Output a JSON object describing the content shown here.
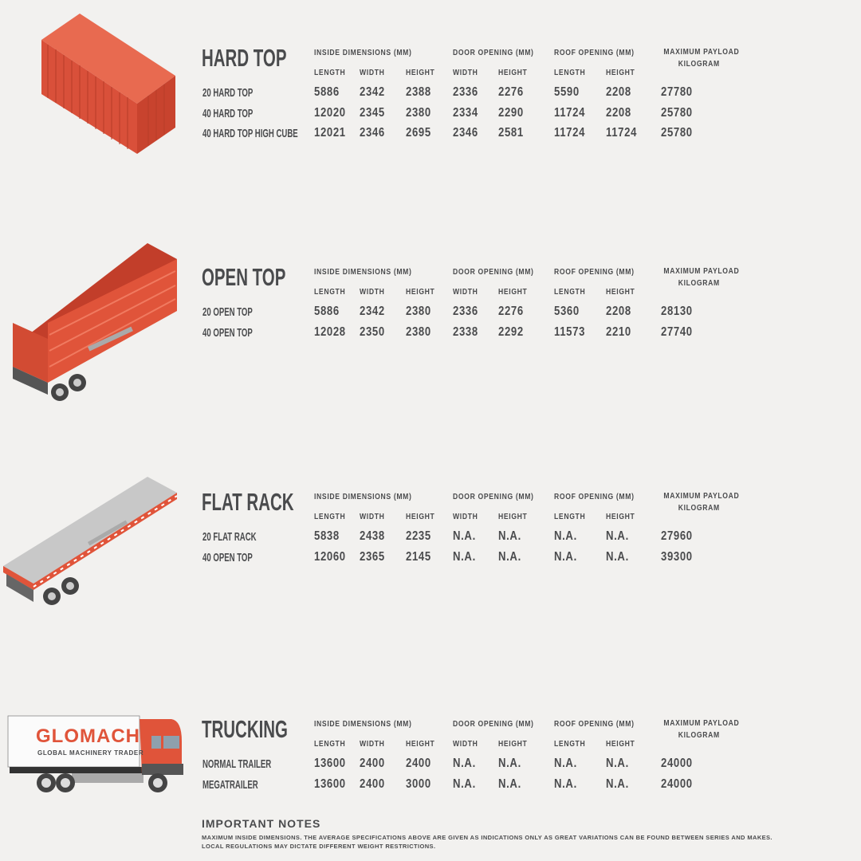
{
  "columns": {
    "groups": [
      "INSIDE DIMENSIONS (MM)",
      "DOOR OPENING (MM)",
      "ROOF OPENING (MM)"
    ],
    "payload": [
      "MAXIMUM PAYLOAD",
      "KILOGRAM"
    ],
    "sub": [
      "LENGTH",
      "WIDTH",
      "HEIGHT",
      "WIDTH",
      "HEIGHT",
      "LENGTH",
      "HEIGHT"
    ]
  },
  "sections": [
    {
      "title": "HARD TOP",
      "illustration": "container-hard-top",
      "rows": [
        {
          "name": "20 HARD TOP",
          "values": [
            "5886",
            "2342",
            "2388",
            "2336",
            "2276",
            "5590",
            "2208",
            "27780"
          ]
        },
        {
          "name": "40 HARD TOP",
          "values": [
            "12020",
            "2345",
            "2380",
            "2334",
            "2290",
            "11724",
            "2208",
            "25780"
          ]
        },
        {
          "name": "40 HARD TOP HIGH CUBE",
          "values": [
            "12021",
            "2346",
            "2695",
            "2346",
            "2581",
            "11724",
            "11724",
            "25780"
          ]
        }
      ]
    },
    {
      "title": "OPEN TOP",
      "illustration": "open-top-trailer",
      "rows": [
        {
          "name": "20 OPEN TOP",
          "values": [
            "5886",
            "2342",
            "2380",
            "2336",
            "2276",
            "5360",
            "2208",
            "28130"
          ]
        },
        {
          "name": "40 OPEN TOP",
          "values": [
            "12028",
            "2350",
            "2380",
            "2338",
            "2292",
            "11573",
            "2210",
            "27740"
          ]
        }
      ]
    },
    {
      "title": "FLAT RACK",
      "illustration": "flat-rack-trailer",
      "rows": [
        {
          "name": "20 FLAT RACK",
          "values": [
            "5838",
            "2438",
            "2235",
            "N.A.",
            "N.A.",
            "N.A.",
            "N.A.",
            "27960"
          ]
        },
        {
          "name": "40 OPEN TOP",
          "values": [
            "12060",
            "2365",
            "2145",
            "N.A.",
            "N.A.",
            "N.A.",
            "N.A.",
            "39300"
          ]
        }
      ]
    },
    {
      "title": "TRUCKING",
      "illustration": "truck",
      "rows": [
        {
          "name": "NORMAL TRAILER",
          "values": [
            "13600",
            "2400",
            "2400",
            "N.A.",
            "N.A.",
            "N.A.",
            "N.A.",
            "24000"
          ]
        },
        {
          "name": "MEGATRAILER",
          "values": [
            "13600",
            "2400",
            "3000",
            "N.A.",
            "N.A.",
            "N.A.",
            "N.A.",
            "24000"
          ]
        }
      ]
    }
  ],
  "truck_logo": {
    "brand": "GLOMACHT",
    "tagline": "GLOBAL MACHINERY TRADER"
  },
  "notes": {
    "title": "IMPORTANT NOTES",
    "lines": [
      "MAXIMUM INSIDE DIMENSIONS. THE AVERAGE SPECIFICATIONS ABOVE ARE GIVEN AS INDICATIONS ONLY AS GREAT VARIATIONS CAN BE FOUND BETWEEN SERIES AND MAKES.",
      "LOCAL REGULATIONS MAY DICTATE DIFFERENT WEIGHT RESTRICTIONS."
    ]
  },
  "colors": {
    "accent": "#e0543a",
    "text": "#4a4b4d",
    "background": "#f2f1ef",
    "deck": "#c8c8c8"
  }
}
